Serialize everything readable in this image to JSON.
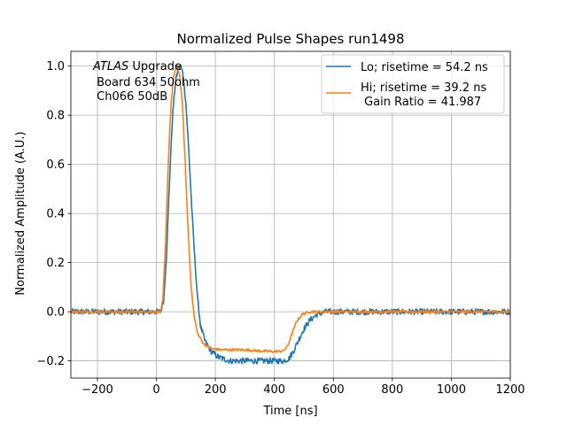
{
  "chart_data": {
    "type": "line",
    "title": "Normalized Pulse Shapes run1498",
    "xlabel": "Time [ns]",
    "ylabel": "Normalized Amplitude (A.U.)",
    "xlim": [
      -290,
      1200
    ],
    "ylim": [
      -0.27,
      1.06
    ],
    "xticks": [
      -200,
      0,
      200,
      400,
      600,
      800,
      1000,
      1200
    ],
    "xtick_labels": [
      "−200",
      "0",
      "200",
      "400",
      "600",
      "800",
      "1000",
      "1200"
    ],
    "yticks": [
      -0.2,
      0.0,
      0.2,
      0.4,
      0.6,
      0.8,
      1.0
    ],
    "ytick_labels": [
      "−0.2",
      "0.0",
      "0.2",
      "0.4",
      "0.6",
      "0.8",
      "1.0"
    ],
    "grid": true,
    "legend_position": "top-right",
    "annotation": {
      "italic": "ATLAS",
      "line1_rest": " Upgrade",
      "line2": " Board 634 50ohm",
      "line3": " Ch066 50dB"
    },
    "series": [
      {
        "name": "Lo; risetime = 54.2 ns",
        "color": "#1f77b4",
        "points": [
          [
            -290,
            0.0
          ],
          [
            15,
            0.0
          ],
          [
            25,
            0.05
          ],
          [
            35,
            0.25
          ],
          [
            45,
            0.55
          ],
          [
            55,
            0.8
          ],
          [
            65,
            0.94
          ],
          [
            75,
            0.99
          ],
          [
            82,
            1.0
          ],
          [
            90,
            0.97
          ],
          [
            100,
            0.85
          ],
          [
            110,
            0.65
          ],
          [
            120,
            0.42
          ],
          [
            130,
            0.22
          ],
          [
            140,
            0.05
          ],
          [
            150,
            -0.06
          ],
          [
            165,
            -0.12
          ],
          [
            185,
            -0.16
          ],
          [
            210,
            -0.185
          ],
          [
            250,
            -0.2
          ],
          [
            300,
            -0.2
          ],
          [
            350,
            -0.2
          ],
          [
            400,
            -0.2
          ],
          [
            430,
            -0.2
          ],
          [
            450,
            -0.19
          ],
          [
            465,
            -0.16
          ],
          [
            480,
            -0.12
          ],
          [
            500,
            -0.07
          ],
          [
            520,
            -0.035
          ],
          [
            545,
            -0.01
          ],
          [
            575,
            0.0
          ],
          [
            1200,
            0.0
          ]
        ]
      },
      {
        "name": "Hi; risetime = 39.2 ns\n Gain Ratio = 41.987",
        "color": "#ff7f0e",
        "points": [
          [
            -290,
            0.0
          ],
          [
            15,
            0.0
          ],
          [
            22,
            0.05
          ],
          [
            30,
            0.25
          ],
          [
            40,
            0.6
          ],
          [
            50,
            0.85
          ],
          [
            60,
            0.97
          ],
          [
            70,
            1.0
          ],
          [
            78,
            0.97
          ],
          [
            88,
            0.85
          ],
          [
            98,
            0.6
          ],
          [
            108,
            0.32
          ],
          [
            118,
            0.1
          ],
          [
            128,
            -0.02
          ],
          [
            140,
            -0.09
          ],
          [
            160,
            -0.13
          ],
          [
            185,
            -0.15
          ],
          [
            220,
            -0.155
          ],
          [
            260,
            -0.155
          ],
          [
            300,
            -0.155
          ],
          [
            350,
            -0.16
          ],
          [
            400,
            -0.162
          ],
          [
            430,
            -0.16
          ],
          [
            445,
            -0.14
          ],
          [
            460,
            -0.09
          ],
          [
            475,
            -0.04
          ],
          [
            495,
            -0.01
          ],
          [
            520,
            0.0
          ],
          [
            1200,
            0.0
          ]
        ]
      }
    ]
  }
}
